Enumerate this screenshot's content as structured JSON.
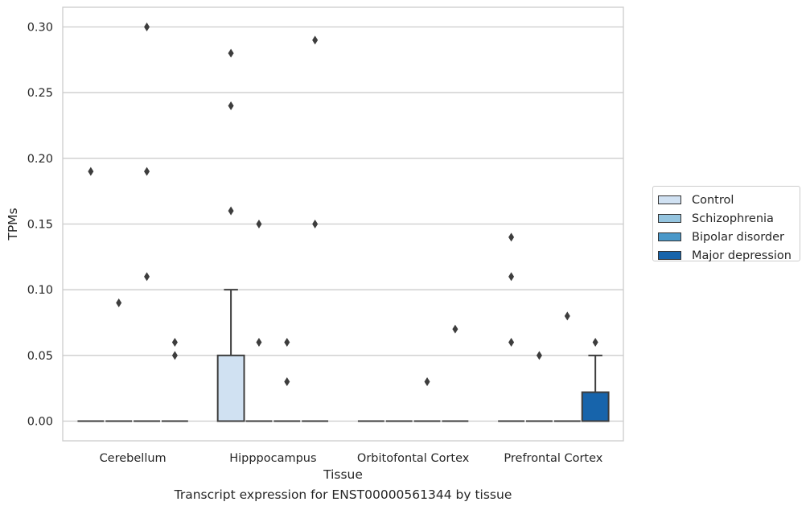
{
  "caption": "Transcript expression for ENST00000561344 by tissue",
  "legend": {
    "items": [
      {
        "label": "Control",
        "color": "#d0e1f2"
      },
      {
        "label": "Schizophrenia",
        "color": "#94c4df"
      },
      {
        "label": "Bipolar disorder",
        "color": "#4a98c9"
      },
      {
        "label": "Major depression",
        "color": "#1764ab"
      }
    ]
  },
  "chart_data": {
    "type": "box",
    "title": "",
    "xlabel": "Tissue",
    "ylabel": "TPMs",
    "ylim": [
      -0.015,
      0.315
    ],
    "yticks": [
      0.0,
      0.05,
      0.1,
      0.15,
      0.2,
      0.25,
      0.3
    ],
    "ytick_labels": [
      "0.00",
      "0.05",
      "0.10",
      "0.15",
      "0.20",
      "0.25",
      "0.30"
    ],
    "grid": true,
    "legend_position": "right",
    "categories": [
      "Cerebellum",
      "Hipppocampus",
      "Orbitofontal Cortex",
      "Prefrontal Cortex"
    ],
    "series": [
      {
        "name": "Control",
        "boxes": [
          {
            "q1": 0,
            "median": 0,
            "q3": 0,
            "whislo": 0,
            "whishi": 0,
            "outliers": [
              0.19
            ]
          },
          {
            "q1": 0,
            "median": 0,
            "q3": 0.05,
            "whislo": 0,
            "whishi": 0.1,
            "outliers": [
              0.28,
              0.24,
              0.16
            ]
          },
          {
            "q1": 0,
            "median": 0,
            "q3": 0,
            "whislo": 0,
            "whishi": 0,
            "outliers": []
          },
          {
            "q1": 0,
            "median": 0,
            "q3": 0,
            "whislo": 0,
            "whishi": 0,
            "outliers": [
              0.14,
              0.11,
              0.06
            ]
          }
        ]
      },
      {
        "name": "Schizophrenia",
        "boxes": [
          {
            "q1": 0,
            "median": 0,
            "q3": 0,
            "whislo": 0,
            "whishi": 0,
            "outliers": [
              0.09
            ]
          },
          {
            "q1": 0,
            "median": 0,
            "q3": 0,
            "whislo": 0,
            "whishi": 0,
            "outliers": [
              0.15,
              0.06
            ]
          },
          {
            "q1": 0,
            "median": 0,
            "q3": 0,
            "whislo": 0,
            "whishi": 0,
            "outliers": []
          },
          {
            "q1": 0,
            "median": 0,
            "q3": 0,
            "whislo": 0,
            "whishi": 0,
            "outliers": [
              0.05
            ]
          }
        ]
      },
      {
        "name": "Bipolar disorder",
        "boxes": [
          {
            "q1": 0,
            "median": 0,
            "q3": 0,
            "whislo": 0,
            "whishi": 0,
            "outliers": [
              0.3,
              0.19,
              0.11
            ]
          },
          {
            "q1": 0,
            "median": 0,
            "q3": 0,
            "whislo": 0,
            "whishi": 0,
            "outliers": [
              0.06,
              0.03
            ]
          },
          {
            "q1": 0,
            "median": 0,
            "q3": 0,
            "whislo": 0,
            "whishi": 0,
            "outliers": [
              0.03
            ]
          },
          {
            "q1": 0,
            "median": 0,
            "q3": 0,
            "whislo": 0,
            "whishi": 0,
            "outliers": [
              0.08
            ]
          }
        ]
      },
      {
        "name": "Major depression",
        "boxes": [
          {
            "q1": 0,
            "median": 0,
            "q3": 0,
            "whislo": 0,
            "whishi": 0,
            "outliers": [
              0.06,
              0.05
            ]
          },
          {
            "q1": 0,
            "median": 0,
            "q3": 0,
            "whislo": 0,
            "whishi": 0,
            "outliers": [
              0.29,
              0.15
            ]
          },
          {
            "q1": 0,
            "median": 0,
            "q3": 0,
            "whislo": 0,
            "whishi": 0,
            "outliers": [
              0.07
            ]
          },
          {
            "q1": 0,
            "median": 0,
            "q3": 0.022,
            "whislo": 0,
            "whishi": 0.05,
            "outliers": [
              0.06
            ]
          }
        ]
      }
    ]
  }
}
